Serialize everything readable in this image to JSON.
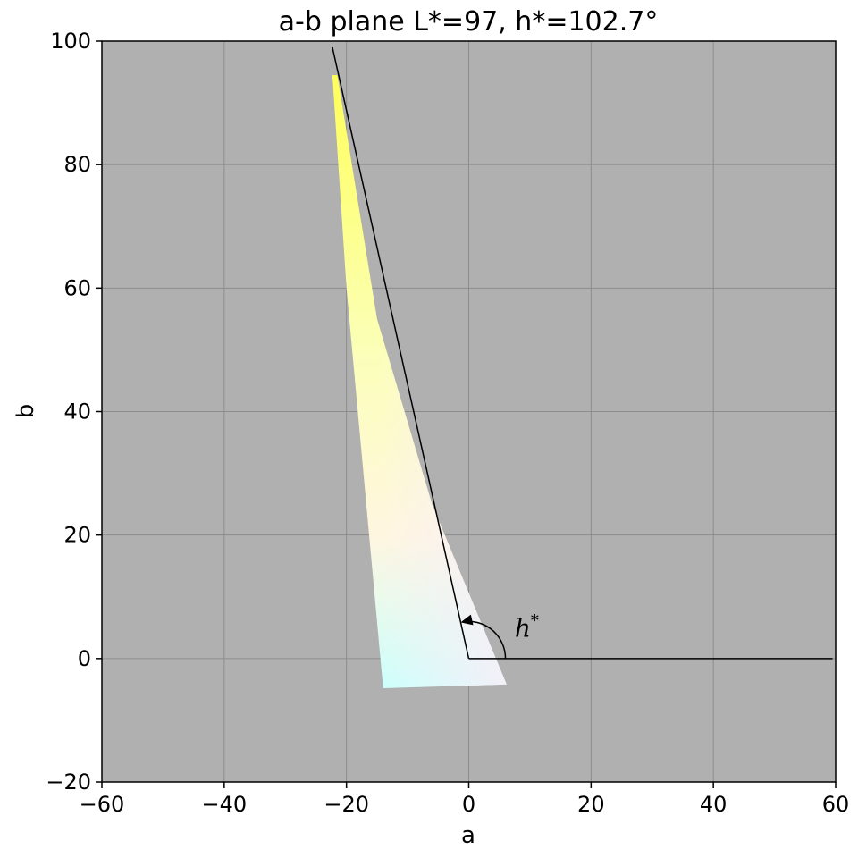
{
  "chart_data": {
    "type": "area",
    "title": "a-b plane L*=97, h*=102.7°",
    "xlabel": "a",
    "ylabel": "b",
    "xlim": [
      -60,
      60
    ],
    "ylim": [
      -20,
      100
    ],
    "xticks": [
      -60,
      -40,
      -20,
      0,
      20,
      40,
      60
    ],
    "yticks": [
      -20,
      0,
      20,
      40,
      60,
      80,
      100
    ],
    "xtick_labels": [
      "−60",
      "−40",
      "−20",
      "0",
      "20",
      "40",
      "60"
    ],
    "ytick_labels": [
      "−20",
      "0",
      "20",
      "40",
      "60",
      "80",
      "100"
    ],
    "grid": true,
    "background_color": "#b0b0b0",
    "grid_color": "#8c8c8c",
    "gamut_slice": {
      "vertices": [
        {
          "a": -22.3,
          "b": 94.5
        },
        {
          "a": -21.5,
          "b": 94.5
        },
        {
          "a": -15.0,
          "b": 55.0
        },
        {
          "a": -6.0,
          "b": 25.0
        },
        {
          "a": 6.2,
          "b": -4.2
        },
        {
          "a": -14.0,
          "b": -4.8
        },
        {
          "a": -20.0,
          "b": 60.0
        }
      ],
      "colors": {
        "yellow": "#ffff5a",
        "light_yellow": "#fbffb8",
        "cream": "#fff6e0",
        "cyan_white": "#ccfffc",
        "pink_white": "#f8eef8"
      }
    },
    "hue_line": {
      "hue_deg": 102.7,
      "start": {
        "a": 0,
        "b": 0
      },
      "end": {
        "a": -22.3,
        "b": 99.0
      }
    },
    "reference_line": {
      "start": {
        "a": 0,
        "b": 0
      },
      "end": {
        "a": 59.5,
        "b": 0
      }
    },
    "angle_arc": {
      "radius": 6.0,
      "from_deg": 0,
      "to_deg": 102.7
    },
    "annotation": {
      "text": "h",
      "sup": "*",
      "a": 7.5,
      "b": 3.5
    }
  }
}
